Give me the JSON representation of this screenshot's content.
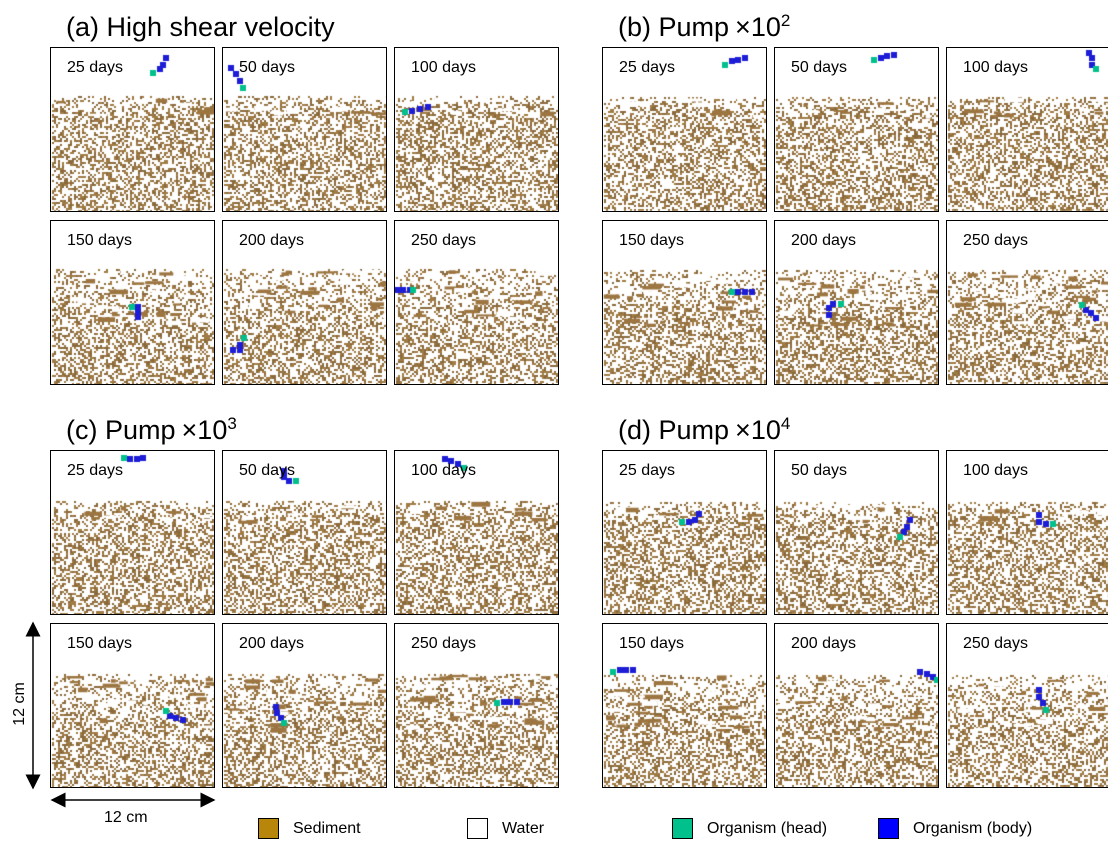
{
  "groups": [
    {
      "label": "(a) High shear velocity",
      "base": "",
      "exp": "",
      "seed": 11,
      "panels": [
        {
          "day": "25 days",
          "org": [
            [
              0.7,
              0.06
            ],
            [
              0.68,
              0.1
            ],
            [
              0.66,
              0.13
            ],
            [
              0.62,
              0.15
            ]
          ]
        },
        {
          "day": "50 days",
          "org": [
            [
              0.05,
              0.12
            ],
            [
              0.08,
              0.16
            ],
            [
              0.1,
              0.2
            ],
            [
              0.12,
              0.24
            ]
          ]
        },
        {
          "day": "100 days",
          "org": [
            [
              0.2,
              0.36
            ],
            [
              0.15,
              0.37
            ],
            [
              0.1,
              0.38
            ],
            [
              0.06,
              0.39
            ]
          ]
        },
        {
          "day": "150 days",
          "org": [
            [
              0.53,
              0.58
            ],
            [
              0.53,
              0.55
            ],
            [
              0.53,
              0.52
            ],
            [
              0.49,
              0.52
            ]
          ]
        },
        {
          "day": "200 days",
          "org": [
            [
              0.1,
              0.78
            ],
            [
              0.06,
              0.78
            ],
            [
              0.1,
              0.75
            ],
            [
              0.13,
              0.71
            ]
          ]
        },
        {
          "day": "250 days",
          "org": [
            [
              0.02,
              0.42
            ],
            [
              0.05,
              0.42
            ],
            [
              0.09,
              0.42
            ],
            [
              0.11,
              0.42
            ]
          ]
        }
      ]
    },
    {
      "label": "(b) Pump",
      "base": "×10",
      "exp": "2",
      "seed": 27,
      "panels": [
        {
          "day": "25 days",
          "org": [
            [
              0.86,
              0.06
            ],
            [
              0.82,
              0.07
            ],
            [
              0.78,
              0.08
            ],
            [
              0.74,
              0.1
            ]
          ]
        },
        {
          "day": "50 days",
          "org": [
            [
              0.72,
              0.04
            ],
            [
              0.68,
              0.05
            ],
            [
              0.64,
              0.06
            ],
            [
              0.6,
              0.07
            ]
          ]
        },
        {
          "day": "100 days",
          "org": [
            [
              0.88,
              0.1
            ],
            [
              0.88,
              0.06
            ],
            [
              0.86,
              0.03
            ],
            [
              0.9,
              0.13
            ]
          ]
        },
        {
          "day": "150 days",
          "org": [
            [
              0.9,
              0.43
            ],
            [
              0.86,
              0.43
            ],
            [
              0.82,
              0.43
            ],
            [
              0.78,
              0.43
            ]
          ]
        },
        {
          "day": "200 days",
          "org": [
            [
              0.33,
              0.57
            ],
            [
              0.33,
              0.53
            ],
            [
              0.35,
              0.5
            ],
            [
              0.4,
              0.5
            ]
          ]
        },
        {
          "day": "250 days",
          "org": [
            [
              0.9,
              0.59
            ],
            [
              0.87,
              0.56
            ],
            [
              0.84,
              0.54
            ],
            [
              0.82,
              0.51
            ]
          ]
        }
      ]
    },
    {
      "label": "(c) Pump",
      "base": "×10",
      "exp": "3",
      "seed": 43,
      "panels": [
        {
          "day": "25 days",
          "org": [
            [
              0.56,
              0.04
            ],
            [
              0.52,
              0.05
            ],
            [
              0.48,
              0.05
            ],
            [
              0.44,
              0.04
            ]
          ]
        },
        {
          "day": "50 days",
          "org": [
            [
              0.37,
              0.12
            ],
            [
              0.37,
              0.16
            ],
            [
              0.4,
              0.18
            ],
            [
              0.44,
              0.18
            ]
          ]
        },
        {
          "day": "100 days",
          "org": [
            [
              0.3,
              0.05
            ],
            [
              0.34,
              0.06
            ],
            [
              0.38,
              0.08
            ],
            [
              0.42,
              0.1
            ]
          ]
        },
        {
          "day": "150 days",
          "org": [
            [
              0.8,
              0.58
            ],
            [
              0.76,
              0.57
            ],
            [
              0.72,
              0.56
            ],
            [
              0.7,
              0.53
            ]
          ]
        },
        {
          "day": "200 days",
          "org": [
            [
              0.32,
              0.5
            ],
            [
              0.33,
              0.54
            ],
            [
              0.35,
              0.57
            ],
            [
              0.37,
              0.6
            ]
          ]
        },
        {
          "day": "250 days",
          "org": [
            [
              0.74,
              0.47
            ],
            [
              0.7,
              0.47
            ],
            [
              0.66,
              0.47
            ],
            [
              0.62,
              0.48
            ]
          ]
        }
      ]
    },
    {
      "label": "(d) Pump",
      "base": "×10",
      "exp": "4",
      "seed": 59,
      "panels": [
        {
          "day": "25 days",
          "org": [
            [
              0.58,
              0.38
            ],
            [
              0.56,
              0.42
            ],
            [
              0.52,
              0.43
            ],
            [
              0.48,
              0.43
            ]
          ]
        },
        {
          "day": "50 days",
          "org": [
            [
              0.82,
              0.42
            ],
            [
              0.8,
              0.46
            ],
            [
              0.78,
              0.49
            ],
            [
              0.76,
              0.52
            ]
          ]
        },
        {
          "day": "100 days",
          "org": [
            [
              0.56,
              0.39
            ],
            [
              0.56,
              0.43
            ],
            [
              0.6,
              0.44
            ],
            [
              0.64,
              0.44
            ]
          ]
        },
        {
          "day": "150 days",
          "org": [
            [
              0.18,
              0.28
            ],
            [
              0.14,
              0.28
            ],
            [
              0.1,
              0.28
            ],
            [
              0.06,
              0.29
            ]
          ]
        },
        {
          "day": "200 days",
          "org": [
            [
              0.88,
              0.29
            ],
            [
              0.92,
              0.3
            ],
            [
              0.96,
              0.32
            ],
            [
              0.98,
              0.34
            ]
          ]
        },
        {
          "day": "250 days",
          "org": [
            [
              0.56,
              0.4
            ],
            [
              0.56,
              0.44
            ],
            [
              0.58,
              0.48
            ],
            [
              0.6,
              0.52
            ]
          ]
        }
      ]
    }
  ],
  "scale": {
    "vertical": "12 cm",
    "horizontal": "12 cm"
  },
  "legend": [
    {
      "label": "Sediment",
      "color": "#b8860b"
    },
    {
      "label": "Water",
      "color": "#ffffff"
    },
    {
      "label": "Organism (head)",
      "color": "#00c08b"
    },
    {
      "label": "Organism (body)",
      "color": "#0000ff"
    }
  ],
  "colors": {
    "sediment": "#a07b45",
    "head": "#00c08b",
    "body": "#1d1dd8"
  }
}
